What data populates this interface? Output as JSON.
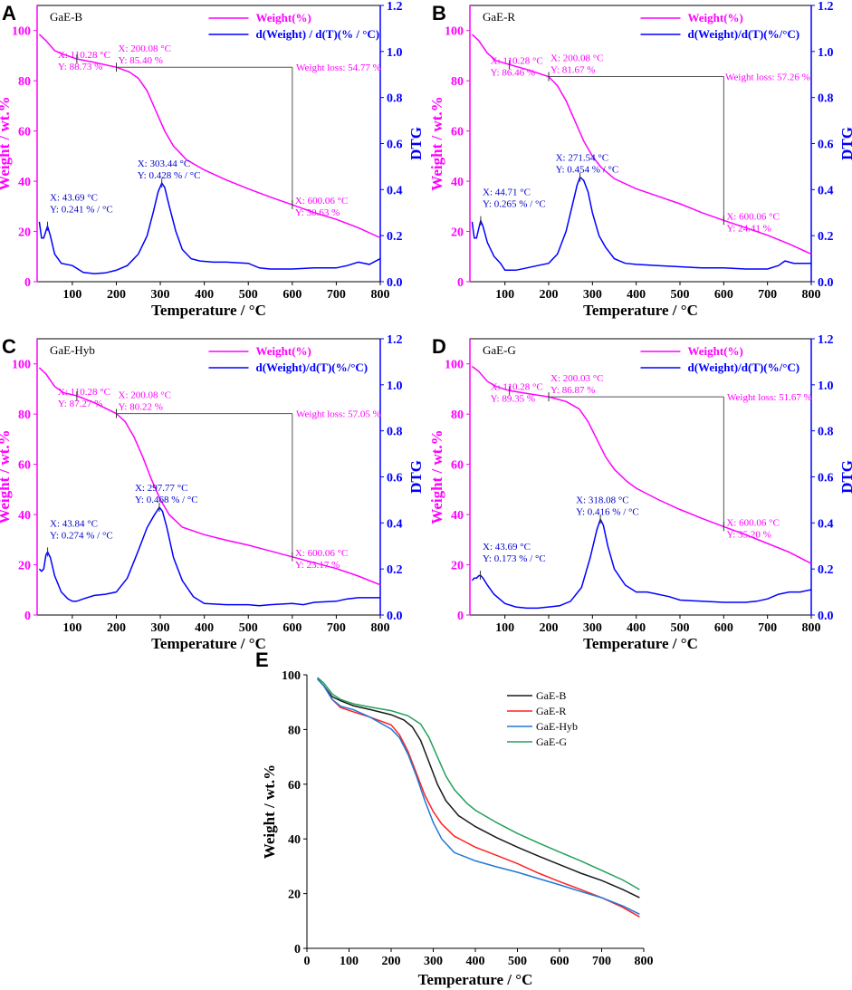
{
  "colors": {
    "weight": "#ff00ff",
    "dtg": "#0000ff",
    "axis": "#000000",
    "marker": "#555555",
    "GaE-B": "#1a1a1a",
    "GaE-R": "#ff2222",
    "GaE-Hyb": "#1f78d8",
    "GaE-G": "#22a05a"
  },
  "common": {
    "xlabel": "Temperature / °C",
    "ylabel_weight": "Weight / wt.%",
    "ylabel_dtg": "DTG",
    "ylabel_E": "Weight / wt.%"
  },
  "chart_data": [
    {
      "panel": "A",
      "sample": "GaE-B",
      "type": "line",
      "legend": [
        "Weight(%)",
        "d(Weight) / d(T)(% / °C)"
      ],
      "xlim": [
        20,
        800
      ],
      "xticks": [
        100,
        200,
        300,
        400,
        500,
        600,
        700,
        800
      ],
      "ylim_weight": [
        0,
        110
      ],
      "yticks_weight": [
        0,
        20,
        40,
        60,
        80,
        100
      ],
      "ylim_dtg": [
        0,
        1.2
      ],
      "yticks_dtg": [
        0.0,
        0.2,
        0.4,
        0.6,
        0.8,
        1.0,
        1.2
      ],
      "weight_curve": {
        "x": [
          25,
          40,
          60,
          80,
          110,
          150,
          200,
          230,
          250,
          270,
          290,
          310,
          330,
          360,
          400,
          450,
          500,
          550,
          600,
          650,
          700,
          750,
          800
        ],
        "y": [
          98.5,
          96,
          92,
          90.5,
          88.73,
          87.3,
          85.4,
          83.5,
          81,
          76,
          68,
          60,
          54,
          48.5,
          44.5,
          40.5,
          37,
          33.7,
          30.63,
          27.5,
          24.8,
          21.5,
          17.5
        ]
      },
      "dtg_curve": {
        "x": [
          25,
          30,
          35,
          40,
          43.69,
          50,
          60,
          75,
          100,
          125,
          150,
          175,
          200,
          225,
          250,
          270,
          285,
          295,
          303.44,
          310,
          320,
          335,
          350,
          370,
          390,
          420,
          450,
          500,
          525,
          550,
          600,
          650,
          700,
          725,
          750,
          775,
          800
        ],
        "y": [
          0.26,
          0.19,
          0.19,
          0.22,
          0.241,
          0.2,
          0.12,
          0.08,
          0.07,
          0.04,
          0.035,
          0.038,
          0.05,
          0.07,
          0.12,
          0.2,
          0.31,
          0.39,
          0.428,
          0.41,
          0.33,
          0.22,
          0.14,
          0.1,
          0.09,
          0.085,
          0.085,
          0.08,
          0.06,
          0.055,
          0.055,
          0.06,
          0.06,
          0.07,
          0.085,
          0.075,
          0.1
        ]
      },
      "markers": [
        {
          "series": "weight",
          "x": 110.28,
          "y": 88.73,
          "label": [
            "X: 110.28 °C",
            "Y: 88.73 %"
          ]
        },
        {
          "series": "weight",
          "x": 200.08,
          "y": 85.4,
          "label": [
            "X: 200.08 °C",
            "Y: 85.40 %"
          ]
        },
        {
          "series": "weight",
          "x": 600.06,
          "y": 30.63,
          "label": [
            "X: 600.06 °C",
            "Y: 30.63 %"
          ]
        },
        {
          "series": "dtg",
          "x": 43.69,
          "y": 0.241,
          "label": [
            "X: 43.69 °C",
            "Y: 0.241 % / °C"
          ]
        },
        {
          "series": "dtg",
          "x": 303.44,
          "y": 0.428,
          "label": [
            "X: 303.44 °C",
            "Y: 0.428 % / °C"
          ]
        }
      ],
      "weight_loss": {
        "from_x": 200.08,
        "to_x": 600.06,
        "top_y": 85.4,
        "bottom_y": 30.63,
        "label": "Weight loss: 54.77 %"
      }
    },
    {
      "panel": "B",
      "sample": "GaE-R",
      "type": "line",
      "legend": [
        "Weight(%)",
        "d(Weight)/d(T)(%/°C)"
      ],
      "xlim": [
        20,
        800
      ],
      "xticks": [
        100,
        200,
        300,
        400,
        500,
        600,
        700,
        800
      ],
      "ylim_weight": [
        0,
        110
      ],
      "yticks_weight": [
        0,
        20,
        40,
        60,
        80,
        100
      ],
      "ylim_dtg": [
        0,
        1.2
      ],
      "yticks_dtg": [
        0.0,
        0.2,
        0.4,
        0.6,
        0.8,
        1.0,
        1.2
      ],
      "weight_curve": {
        "x": [
          25,
          40,
          60,
          80,
          110.28,
          150,
          200.08,
          220,
          240,
          260,
          280,
          300,
          320,
          350,
          400,
          450,
          500,
          550,
          600,
          650,
          700,
          750,
          800
        ],
        "y": [
          98.5,
          96,
          91,
          88,
          86.46,
          84.5,
          81.67,
          78,
          72,
          64,
          56,
          50,
          45.5,
          41,
          37,
          34,
          31,
          27.5,
          24.41,
          21.5,
          18.5,
          15,
          11
        ]
      },
      "dtg_curve": {
        "x": [
          25,
          30,
          35,
          40,
          44.71,
          50,
          60,
          75,
          90,
          100,
          110,
          125,
          150,
          175,
          200,
          220,
          240,
          255,
          265,
          271.54,
          280,
          290,
          300,
          315,
          330,
          350,
          375,
          400,
          450,
          500,
          550,
          600,
          650,
          700,
          725,
          740,
          760,
          800
        ],
        "y": [
          0.26,
          0.19,
          0.19,
          0.23,
          0.265,
          0.24,
          0.17,
          0.11,
          0.08,
          0.05,
          0.05,
          0.05,
          0.06,
          0.07,
          0.08,
          0.12,
          0.22,
          0.34,
          0.42,
          0.454,
          0.44,
          0.39,
          0.3,
          0.2,
          0.15,
          0.1,
          0.08,
          0.075,
          0.07,
          0.065,
          0.06,
          0.06,
          0.055,
          0.055,
          0.07,
          0.09,
          0.08,
          0.08
        ]
      },
      "markers": [
        {
          "series": "weight",
          "x": 110.28,
          "y": 86.46,
          "label": [
            "X: 110.28 °C",
            "Y: 86.46 %"
          ]
        },
        {
          "series": "weight",
          "x": 200.08,
          "y": 81.67,
          "label": [
            "X: 200.08 °C",
            "Y: 81.67 %"
          ]
        },
        {
          "series": "weight",
          "x": 600.06,
          "y": 24.41,
          "label": [
            "X: 600.06 °C",
            "Y: 24.41 %"
          ]
        },
        {
          "series": "dtg",
          "x": 44.71,
          "y": 0.265,
          "label": [
            "X: 44.71 °C",
            "Y: 0.265 % / °C"
          ]
        },
        {
          "series": "dtg",
          "x": 271.54,
          "y": 0.454,
          "label": [
            "X: 271.54 °C",
            "Y: 0.454 % / °C"
          ]
        }
      ],
      "weight_loss": {
        "from_x": 200.08,
        "to_x": 600.06,
        "top_y": 81.67,
        "bottom_y": 24.41,
        "label": "Weight loss: 57.26 %"
      }
    },
    {
      "panel": "C",
      "sample": "GaE-Hyb",
      "type": "line",
      "legend": [
        "Weight(%)",
        "d(Weight)/d(T)(%/°C)"
      ],
      "xlim": [
        20,
        800
      ],
      "xticks": [
        100,
        200,
        300,
        400,
        500,
        600,
        700,
        800
      ],
      "ylim_weight": [
        0,
        110
      ],
      "yticks_weight": [
        0,
        20,
        40,
        60,
        80,
        100
      ],
      "ylim_dtg": [
        0,
        1.2
      ],
      "yticks_dtg": [
        0.0,
        0.2,
        0.4,
        0.6,
        0.8,
        1.0,
        1.2
      ],
      "weight_curve": {
        "x": [
          25,
          40,
          60,
          80,
          110.28,
          150,
          200.08,
          220,
          240,
          260,
          280,
          300,
          320,
          350,
          400,
          450,
          500,
          550,
          600,
          650,
          700,
          750,
          800
        ],
        "y": [
          98.5,
          96,
          91,
          88.5,
          87.27,
          84.5,
          80.22,
          77,
          71,
          63,
          54,
          46,
          40,
          35,
          32,
          29.8,
          27.8,
          25.5,
          23.17,
          20.8,
          18.5,
          15.5,
          12
        ]
      },
      "dtg_curve": {
        "x": [
          25,
          30,
          35,
          40,
          43.84,
          50,
          60,
          75,
          90,
          100,
          110,
          125,
          150,
          175,
          200,
          225,
          250,
          270,
          285,
          297.77,
          305,
          315,
          330,
          350,
          375,
          400,
          450,
          500,
          525,
          550,
          600,
          625,
          650,
          700,
          725,
          750,
          800
        ],
        "y": [
          0.2,
          0.19,
          0.2,
          0.26,
          0.274,
          0.25,
          0.17,
          0.1,
          0.07,
          0.06,
          0.06,
          0.07,
          0.085,
          0.09,
          0.1,
          0.16,
          0.28,
          0.38,
          0.43,
          0.468,
          0.45,
          0.38,
          0.25,
          0.15,
          0.08,
          0.05,
          0.045,
          0.045,
          0.04,
          0.045,
          0.05,
          0.045,
          0.055,
          0.06,
          0.07,
          0.075,
          0.075
        ]
      },
      "markers": [
        {
          "series": "weight",
          "x": 110.28,
          "y": 87.27,
          "label": [
            "X: 110.28 °C",
            "Y: 87.27 %"
          ]
        },
        {
          "series": "weight",
          "x": 200.08,
          "y": 80.22,
          "label": [
            "X: 200.08 °C",
            "Y: 80.22 %"
          ]
        },
        {
          "series": "weight",
          "x": 600.06,
          "y": 23.17,
          "label": [
            "X: 600.06 °C",
            "Y: 23.17 %"
          ]
        },
        {
          "series": "dtg",
          "x": 43.84,
          "y": 0.274,
          "label": [
            "X: 43.84 °C",
            "Y: 0.274 % / °C"
          ]
        },
        {
          "series": "dtg",
          "x": 297.77,
          "y": 0.468,
          "label": [
            "X: 297.77 °C",
            "Y: 0.468 % / °C"
          ]
        }
      ],
      "weight_loss": {
        "from_x": 200.08,
        "to_x": 600.06,
        "top_y": 80.22,
        "bottom_y": 23.17,
        "label": "Weight loss: 57.05 %"
      }
    },
    {
      "panel": "D",
      "sample": "GaE-G",
      "type": "line",
      "legend": [
        "Weight(%)",
        "d(Weight)/d(T)(%/°C)"
      ],
      "xlim": [
        20,
        800
      ],
      "xticks": [
        100,
        200,
        300,
        400,
        500,
        600,
        700,
        800
      ],
      "ylim_weight": [
        0,
        110
      ],
      "yticks_weight": [
        0,
        20,
        40,
        60,
        80,
        100
      ],
      "ylim_dtg": [
        0,
        1.2
      ],
      "yticks_dtg": [
        0.0,
        0.2,
        0.4,
        0.6,
        0.8,
        1.0,
        1.2
      ],
      "weight_curve": {
        "x": [
          25,
          40,
          60,
          80,
          110.28,
          150,
          200.03,
          240,
          270,
          290,
          310,
          330,
          350,
          380,
          400,
          450,
          500,
          550,
          600,
          650,
          700,
          750,
          800
        ],
        "y": [
          99,
          97,
          93,
          91,
          89.35,
          88.2,
          86.87,
          85,
          82,
          77,
          70,
          63,
          58,
          53,
          50.5,
          46,
          42,
          38.5,
          35.2,
          32,
          28.5,
          25,
          20.5
        ]
      },
      "dtg_curve": {
        "x": [
          25,
          30,
          35,
          40,
          43.69,
          50,
          60,
          75,
          100,
          125,
          150,
          175,
          200,
          225,
          250,
          275,
          295,
          310,
          318.08,
          325,
          335,
          350,
          375,
          400,
          425,
          450,
          475,
          500,
          550,
          600,
          650,
          675,
          700,
          725,
          750,
          775,
          800
        ],
        "y": [
          0.15,
          0.16,
          0.16,
          0.17,
          0.173,
          0.16,
          0.13,
          0.09,
          0.05,
          0.035,
          0.03,
          0.03,
          0.035,
          0.04,
          0.06,
          0.12,
          0.25,
          0.37,
          0.416,
          0.39,
          0.3,
          0.2,
          0.13,
          0.1,
          0.1,
          0.09,
          0.08,
          0.065,
          0.06,
          0.055,
          0.055,
          0.06,
          0.07,
          0.09,
          0.1,
          0.1,
          0.11
        ]
      },
      "markers": [
        {
          "series": "weight",
          "x": 110.28,
          "y": 89.35,
          "label": [
            "X: 110.28 °C",
            "Y: 89.35 %"
          ]
        },
        {
          "series": "weight",
          "x": 200.03,
          "y": 86.87,
          "label": [
            "X: 200.03 °C",
            "Y: 86.87 %"
          ]
        },
        {
          "series": "weight",
          "x": 600.06,
          "y": 35.2,
          "label": [
            "X: 600.06 °C",
            "Y: 35.20 %"
          ]
        },
        {
          "series": "dtg",
          "x": 43.69,
          "y": 0.173,
          "label": [
            "X: 43.69 °C",
            "Y: 0.173 % / °C"
          ]
        },
        {
          "series": "dtg",
          "x": 318.08,
          "y": 0.416,
          "label": [
            "X: 318.08 °C",
            "Y: 0.416 % / °C"
          ]
        }
      ],
      "weight_loss": {
        "from_x": 200.03,
        "to_x": 600.06,
        "top_y": 86.87,
        "bottom_y": 35.2,
        "label": "Weight loss: 51.67 %"
      }
    },
    {
      "panel": "E",
      "type": "line",
      "xlim": [
        0,
        800
      ],
      "xticks": [
        0,
        100,
        200,
        300,
        400,
        500,
        600,
        700,
        800
      ],
      "ylim": [
        0,
        100
      ],
      "yticks": [
        0,
        20,
        40,
        60,
        80,
        100
      ],
      "series": [
        {
          "name": "GaE-B",
          "x": [
            25,
            40,
            60,
            80,
            110,
            150,
            200,
            230,
            250,
            270,
            290,
            310,
            330,
            360,
            400,
            450,
            500,
            550,
            600,
            650,
            700,
            750,
            790
          ],
          "y": [
            98.5,
            96,
            92,
            90.5,
            88.7,
            87.3,
            85.4,
            83.5,
            81,
            76,
            68,
            60,
            54,
            48.5,
            44.5,
            40.5,
            37,
            33.7,
            30.6,
            27.5,
            24.8,
            21.5,
            18.5
          ]
        },
        {
          "name": "GaE-R",
          "x": [
            25,
            40,
            60,
            80,
            110,
            150,
            200,
            220,
            240,
            260,
            280,
            300,
            320,
            350,
            400,
            450,
            500,
            550,
            600,
            650,
            700,
            750,
            790
          ],
          "y": [
            98.5,
            96,
            91,
            88,
            86.5,
            84.5,
            81.7,
            78,
            72,
            64,
            56,
            50,
            45.5,
            41,
            37,
            34,
            31,
            27.5,
            24.4,
            21.5,
            18.5,
            15,
            11.5
          ]
        },
        {
          "name": "GaE-Hyb",
          "x": [
            25,
            40,
            60,
            80,
            110,
            150,
            200,
            220,
            240,
            260,
            280,
            300,
            320,
            350,
            400,
            450,
            500,
            550,
            600,
            650,
            700,
            750,
            790
          ],
          "y": [
            98.5,
            96,
            91,
            88.5,
            87.3,
            84.5,
            80.2,
            77,
            71,
            63,
            54,
            46,
            40,
            35,
            32,
            29.8,
            27.8,
            25.5,
            23.2,
            20.8,
            18.5,
            15.5,
            12.5
          ]
        },
        {
          "name": "GaE-G",
          "x": [
            25,
            40,
            60,
            80,
            110,
            150,
            200,
            240,
            270,
            290,
            310,
            330,
            350,
            380,
            400,
            450,
            500,
            550,
            600,
            650,
            700,
            750,
            790
          ],
          "y": [
            99,
            97,
            93,
            91,
            89.4,
            88.2,
            86.9,
            85,
            82,
            77,
            70,
            63,
            58,
            53,
            50.5,
            46,
            42,
            38.5,
            35.2,
            32,
            28.5,
            25,
            21.5
          ]
        }
      ]
    }
  ]
}
